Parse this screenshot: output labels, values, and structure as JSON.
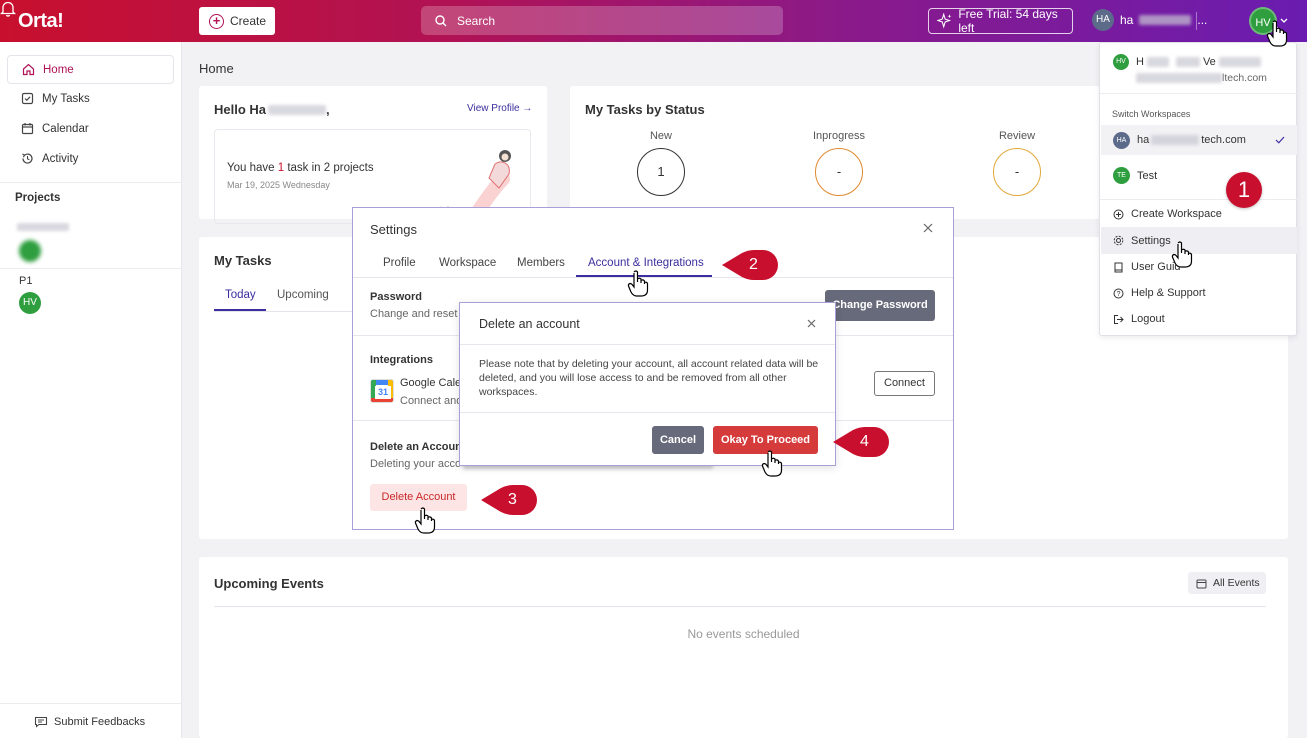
{
  "app": {
    "logo": "Orta!"
  },
  "topbar": {
    "create_label": "Create",
    "search_placeholder": "Search",
    "trial_label": "Free Trial: 54 days left",
    "workspace_initials": "HA",
    "workspace_name": "ha",
    "user_initials": "HV"
  },
  "sidebar": {
    "items": [
      {
        "label": "Home",
        "icon": "home-icon"
      },
      {
        "label": "My Tasks",
        "icon": "checkbox-icon"
      },
      {
        "label": "Calendar",
        "icon": "calendar-icon"
      },
      {
        "label": "Activity",
        "icon": "activity-icon"
      }
    ],
    "projects_heading": "Projects",
    "project_p1": "P1",
    "project_p1_avatar": "HV",
    "feedback_label": "Submit Feedbacks"
  },
  "home": {
    "page_title": "Home",
    "hello_prefix": "Hello Ha",
    "hello_suffix": ",",
    "view_profile": "View Profile →",
    "task_pre": "You have ",
    "task_count": "1",
    "task_post": " task in 2 projects",
    "task_date": "Mar 19, 2025 Wednesday",
    "status_title": "My Tasks by Status",
    "status": [
      {
        "label": "New",
        "value": "1"
      },
      {
        "label": "Inprogress",
        "value": "-"
      },
      {
        "label": "Review",
        "value": "-"
      }
    ],
    "my_tasks_title": "My Tasks",
    "tabs": [
      "Today",
      "Upcoming"
    ],
    "events_title": "Upcoming Events",
    "all_events": "All Events",
    "no_events": "No events scheduled"
  },
  "dropdown": {
    "user_initials": "HV",
    "user_name_a": "H",
    "user_name_b": "Ve",
    "user_email_suffix": "ltech.com",
    "switch_heading": "Switch Workspaces",
    "workspaces": [
      {
        "initials": "HA",
        "name_a": "ha",
        "name_b": "tech.com",
        "selected": true
      },
      {
        "initials": "TE",
        "name_a": "Test",
        "name_b": "",
        "selected": false
      }
    ],
    "items": [
      {
        "label": "Create Workspace",
        "icon": "plus-circle-icon"
      },
      {
        "label": "Settings",
        "icon": "gear-icon"
      },
      {
        "label": "User Guide",
        "icon": "book-icon"
      },
      {
        "label": "Help & Support",
        "icon": "help-icon"
      },
      {
        "label": "Logout",
        "icon": "logout-icon"
      }
    ],
    "user_guide_visible": "User Guid"
  },
  "settings": {
    "title": "Settings",
    "tabs": [
      "Profile",
      "Workspace",
      "Members",
      "Account & Integrations"
    ],
    "password_label": "Password",
    "password_sub": "Change and reset",
    "change_password_btn": "Change Password",
    "integrations_label": "Integrations",
    "google_cal": "Google Cale",
    "google_sub": "Connect and",
    "calendar_icon_num": "31",
    "connect_btn": "Connect",
    "delete_label": "Delete an Accoun",
    "delete_sub": "Deleting your acco",
    "delete_sub_tail": "",
    "delete_btn": "Delete Account"
  },
  "delete_modal": {
    "title": "Delete an account",
    "body": "Please note that by deleting your account, all account related data will be deleted, and you will lose access to and be removed from all other workspaces.",
    "cancel": "Cancel",
    "proceed": "Okay To Proceed"
  },
  "markers": [
    "1",
    "2",
    "3",
    "4"
  ],
  "colors": {
    "brand": "#b01255",
    "accent_purple": "#3b2e9e",
    "danger": "#d63b3b",
    "marker": "#c8102e"
  }
}
